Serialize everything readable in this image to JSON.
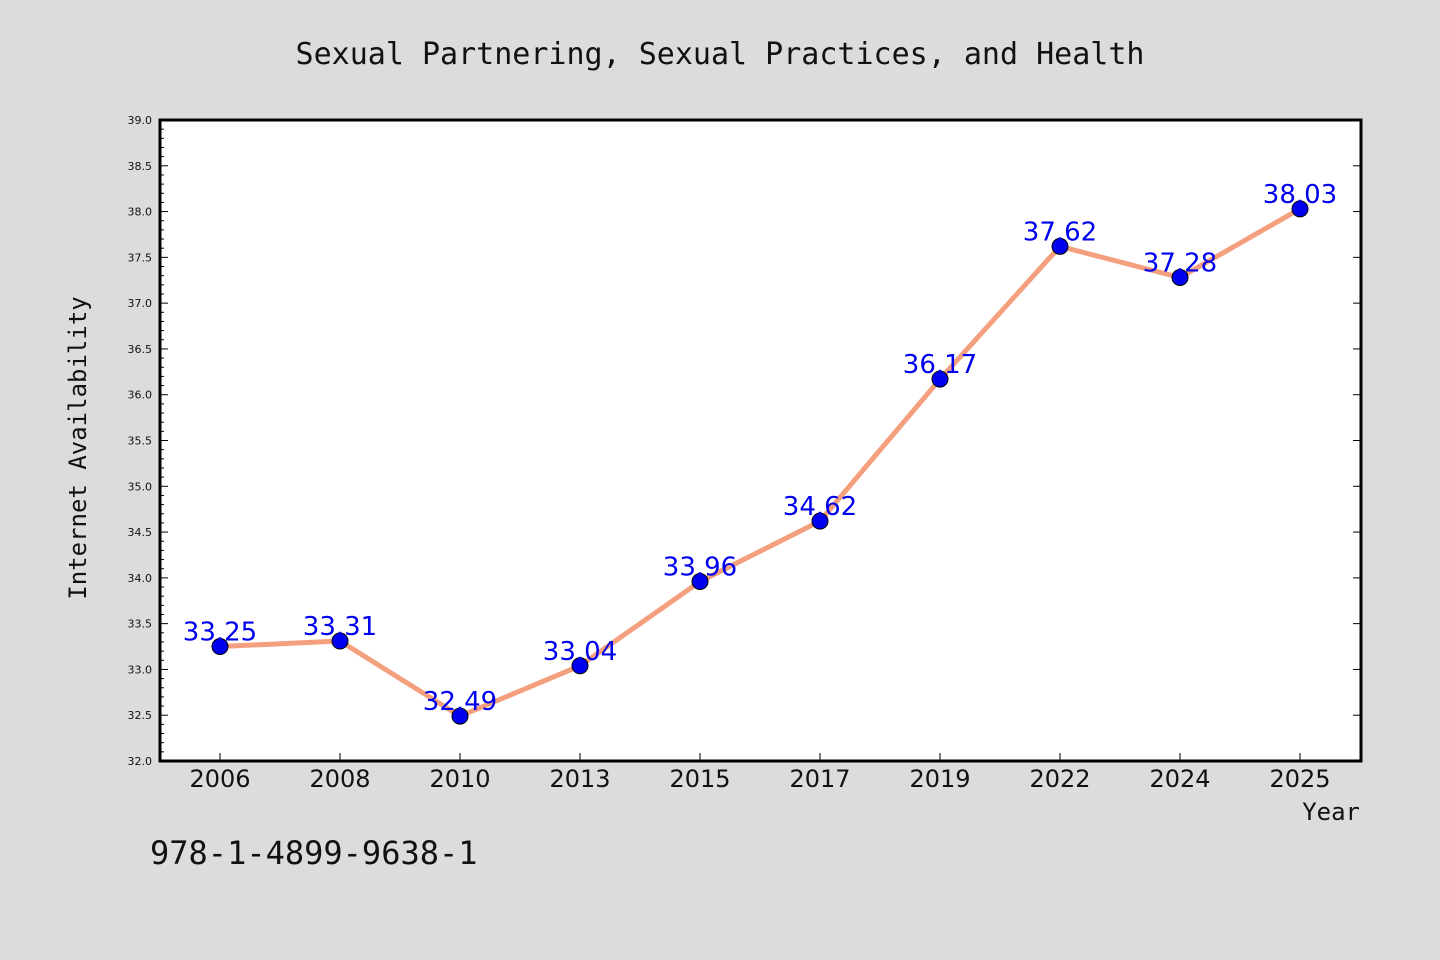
{
  "chart_data": {
    "type": "line",
    "title": "Sexual Partnering, Sexual Practices, and Health",
    "xlabel": "Year",
    "ylabel": "Internet Availability",
    "categories": [
      "2006",
      "2008",
      "2010",
      "2013",
      "2015",
      "2017",
      "2019",
      "2022",
      "2024",
      "2025"
    ],
    "values": [
      33.25,
      33.31,
      32.49,
      33.04,
      33.96,
      34.62,
      36.17,
      37.62,
      37.28,
      38.03
    ],
    "data_labels": [
      "33.25",
      "33.31",
      "32.49",
      "33.04",
      "33.96",
      "34.62",
      "36.17",
      "37.62",
      "37.28",
      "38.03"
    ],
    "ylim": [
      32.0,
      39.0
    ],
    "yticks": [
      "32.0",
      "32.5",
      "33.0",
      "33.5",
      "34.0",
      "34.5",
      "35.0",
      "35.5",
      "36.0",
      "36.5",
      "37.0",
      "37.5",
      "38.0",
      "38.5",
      "39.0"
    ],
    "grid": false,
    "colors": {
      "line": "#f4a07f",
      "marker": "#0000ee",
      "data_label": "#0000ee",
      "background": "#dcdcdc",
      "plot_background": "#ffffff"
    }
  },
  "annotation": {
    "text": "978-1-4899-9638-1"
  }
}
